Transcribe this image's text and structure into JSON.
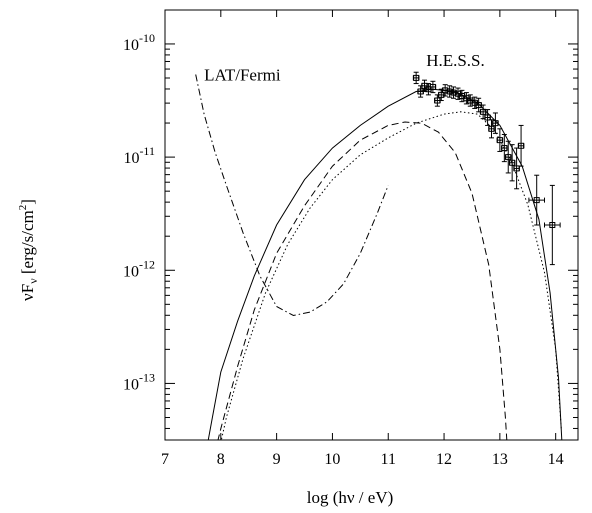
{
  "chart_data": {
    "type": "line",
    "xlabel": "log (hν / eV)",
    "ylabel_main": "νF",
    "ylabel_sub": "ν",
    "ylabel_units": "[erg/s/cm",
    "ylabel_units_sup": "2",
    "ylabel_units_end": "]",
    "xlim": [
      7,
      14.4
    ],
    "ylim_log10": [
      -13.5,
      -9.7
    ],
    "y_scale": "log",
    "grid": false,
    "x_ticks": [
      7,
      8,
      9,
      10,
      11,
      12,
      13,
      14
    ],
    "x_tick_labels": [
      "7",
      "8",
      "9",
      "10",
      "11",
      "12",
      "13",
      "14"
    ],
    "y_ticks_log10": [
      -13,
      -12,
      -11,
      -10
    ],
    "y_tick_labels": [
      {
        "base": "10",
        "exp": "-13"
      },
      {
        "base": "10",
        "exp": "-12"
      },
      {
        "base": "10",
        "exp": "-11"
      },
      {
        "base": "10",
        "exp": "-10"
      }
    ],
    "annotations": [
      {
        "text": "LAT/Fermi",
        "x": 7.7,
        "y_log10": -10.27
      },
      {
        "text": "H.E.S.S.",
        "x": 11.68,
        "y_log10": -10.14
      }
    ],
    "series": [
      {
        "style": "solid",
        "x": [
          7.7,
          7.85,
          8.0,
          8.3,
          8.6,
          9.0,
          9.5,
          10.0,
          10.5,
          11.0,
          11.5,
          11.8,
          12.2,
          12.6,
          13.0,
          13.4,
          13.7,
          13.9,
          14.05,
          14.12
        ],
        "y_log10": [
          -13.7,
          -13.3,
          -12.9,
          -12.45,
          -12.05,
          -11.6,
          -11.2,
          -10.92,
          -10.72,
          -10.55,
          -10.42,
          -10.4,
          -10.42,
          -10.52,
          -10.72,
          -11.08,
          -11.55,
          -12.2,
          -12.95,
          -13.6
        ]
      },
      {
        "style": "dashed",
        "x": [
          7.85,
          8.0,
          8.3,
          8.6,
          9.0,
          9.5,
          10.0,
          10.5,
          11.0,
          11.3,
          11.6,
          11.9,
          12.2,
          12.5,
          12.8,
          13.0,
          13.1,
          13.15
        ],
        "y_log10": [
          -13.7,
          -13.4,
          -12.85,
          -12.35,
          -11.85,
          -11.43,
          -11.08,
          -10.85,
          -10.72,
          -10.69,
          -10.7,
          -10.78,
          -10.96,
          -11.32,
          -11.95,
          -12.7,
          -13.3,
          -13.7
        ]
      },
      {
        "style": "dotted",
        "x": [
          7.92,
          8.1,
          8.4,
          8.8,
          9.2,
          9.6,
          10.0,
          10.5,
          11.0,
          11.5,
          12.0,
          12.3,
          12.6,
          12.9,
          13.2,
          13.5,
          13.8,
          14.0,
          14.1
        ],
        "y_log10": [
          -13.7,
          -13.3,
          -12.78,
          -12.2,
          -11.77,
          -11.45,
          -11.2,
          -10.98,
          -10.83,
          -10.7,
          -10.62,
          -10.6,
          -10.62,
          -10.76,
          -11.03,
          -11.42,
          -12.02,
          -12.7,
          -13.4
        ]
      },
      {
        "style": "dashdot",
        "x": [
          7.55,
          7.7,
          7.9,
          8.1,
          8.4,
          8.7,
          9.0,
          9.3,
          9.6,
          9.9,
          10.2,
          10.5,
          10.8,
          11.0
        ],
        "y_log10": [
          -10.27,
          -10.62,
          -10.96,
          -11.25,
          -11.67,
          -12.05,
          -12.32,
          -12.4,
          -12.37,
          -12.28,
          -12.12,
          -11.85,
          -11.5,
          -11.25
        ]
      }
    ],
    "hess_points": [
      {
        "x": 11.5,
        "y_log10": -10.3,
        "xerr": 0.05,
        "yerr": 0.05
      },
      {
        "x": 11.58,
        "y_log10": -10.42,
        "xerr": 0.05,
        "yerr": 0.05
      },
      {
        "x": 11.65,
        "y_log10": -10.37,
        "xerr": 0.05,
        "yerr": 0.05
      },
      {
        "x": 11.72,
        "y_log10": -10.4,
        "xerr": 0.05,
        "yerr": 0.05
      },
      {
        "x": 11.8,
        "y_log10": -10.38,
        "xerr": 0.05,
        "yerr": 0.05
      },
      {
        "x": 11.88,
        "y_log10": -10.5,
        "xerr": 0.05,
        "yerr": 0.05
      },
      {
        "x": 11.95,
        "y_log10": -10.45,
        "xerr": 0.05,
        "yerr": 0.05
      },
      {
        "x": 12.02,
        "y_log10": -10.41,
        "xerr": 0.05,
        "yerr": 0.05
      },
      {
        "x": 12.1,
        "y_log10": -10.42,
        "xerr": 0.05,
        "yerr": 0.05
      },
      {
        "x": 12.17,
        "y_log10": -10.43,
        "xerr": 0.05,
        "yerr": 0.05
      },
      {
        "x": 12.25,
        "y_log10": -10.44,
        "xerr": 0.05,
        "yerr": 0.05
      },
      {
        "x": 12.32,
        "y_log10": -10.46,
        "xerr": 0.05,
        "yerr": 0.05
      },
      {
        "x": 12.4,
        "y_log10": -10.48,
        "xerr": 0.05,
        "yerr": 0.05
      },
      {
        "x": 12.47,
        "y_log10": -10.5,
        "xerr": 0.05,
        "yerr": 0.05
      },
      {
        "x": 12.55,
        "y_log10": -10.52,
        "xerr": 0.05,
        "yerr": 0.05
      },
      {
        "x": 12.62,
        "y_log10": -10.54,
        "xerr": 0.05,
        "yerr": 0.06
      },
      {
        "x": 12.7,
        "y_log10": -10.6,
        "xerr": 0.05,
        "yerr": 0.06
      },
      {
        "x": 12.78,
        "y_log10": -10.65,
        "xerr": 0.05,
        "yerr": 0.07
      },
      {
        "x": 12.85,
        "y_log10": -10.75,
        "xerr": 0.05,
        "yerr": 0.08
      },
      {
        "x": 12.92,
        "y_log10": -10.7,
        "xerr": 0.05,
        "yerr": 0.09
      },
      {
        "x": 13.0,
        "y_log10": -10.85,
        "xerr": 0.05,
        "yerr": 0.1
      },
      {
        "x": 13.08,
        "y_log10": -10.92,
        "xerr": 0.05,
        "yerr": 0.12
      },
      {
        "x": 13.15,
        "y_log10": -11.0,
        "xerr": 0.05,
        "yerr": 0.14
      },
      {
        "x": 13.22,
        "y_log10": -11.05,
        "xerr": 0.05,
        "yerr": 0.16
      },
      {
        "x": 13.3,
        "y_log10": -11.1,
        "xerr": 0.05,
        "yerr": 0.18
      },
      {
        "x": 13.38,
        "y_log10": -10.9,
        "xerr": 0.05,
        "yerr": 0.18
      },
      {
        "x": 13.66,
        "y_log10": -11.38,
        "xerr": 0.14,
        "yerr": 0.22
      },
      {
        "x": 13.94,
        "y_log10": -11.6,
        "xerr": 0.14,
        "yerr": 0.35
      }
    ]
  }
}
